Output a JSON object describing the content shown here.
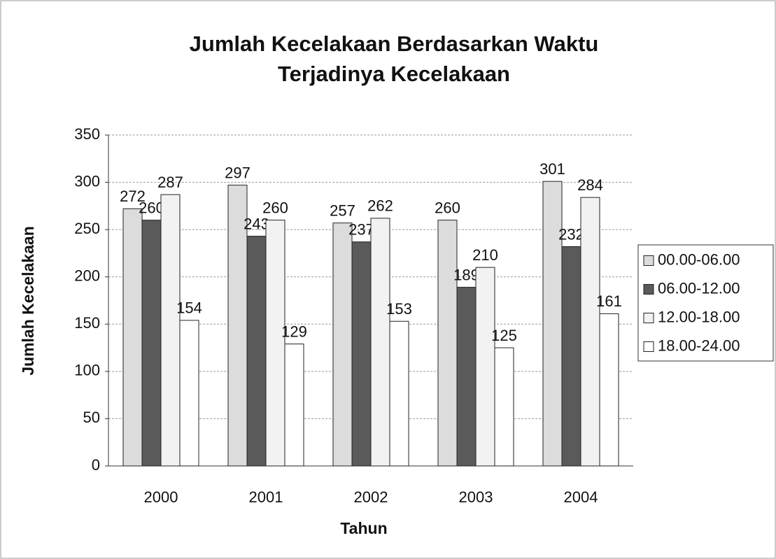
{
  "chart_data": {
    "type": "bar",
    "title": [
      "Jumlah Kecelakaan Berdasarkan Waktu",
      "Terjadinya Kecelakaan"
    ],
    "xlabel": "Tahun",
    "ylabel": "Jumlah Kecelakaan",
    "categories": [
      "2000",
      "2001",
      "2002",
      "2003",
      "2004"
    ],
    "series": [
      {
        "name": "00.00-06.00",
        "color": "#dcdcdc",
        "values": [
          272,
          297,
          257,
          260,
          301
        ]
      },
      {
        "name": "06.00-12.00",
        "color": "#5a5a5a",
        "values": [
          260,
          243,
          237,
          189,
          232
        ]
      },
      {
        "name": "12.00-18.00",
        "color": "#f2f2f2",
        "values": [
          287,
          260,
          262,
          210,
          284
        ]
      },
      {
        "name": "18.00-24.00",
        "color": "#ffffff",
        "values": [
          154,
          129,
          153,
          125,
          161
        ]
      }
    ],
    "ylim": [
      0,
      350
    ],
    "yticks": [
      0,
      50,
      100,
      150,
      200,
      250,
      300,
      350
    ],
    "grid": true,
    "legend": "right"
  }
}
